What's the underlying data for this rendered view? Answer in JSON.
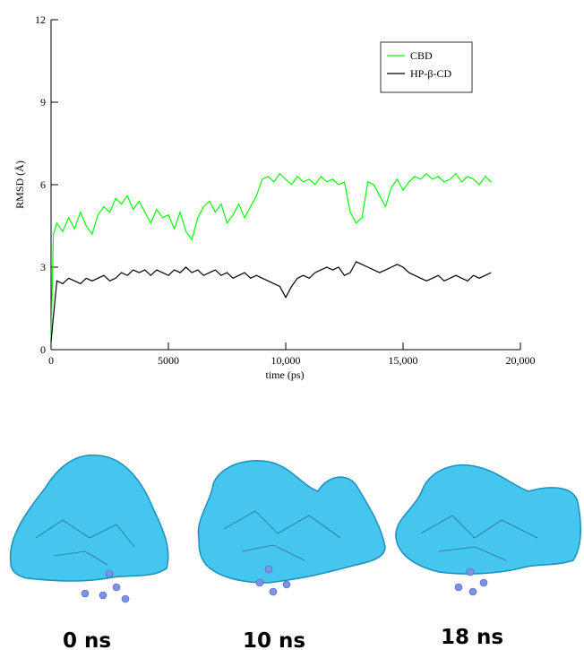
{
  "chart_data": {
    "type": "line",
    "x_label": "time (ps)",
    "y_label": "RMSD (Å)",
    "x": [
      0,
      100,
      250,
      500,
      750,
      1000,
      1250,
      1500,
      1750,
      2000,
      2250,
      2500,
      2750,
      3000,
      3250,
      3500,
      3750,
      4000,
      4250,
      4500,
      4750,
      5000,
      5250,
      5500,
      5750,
      6000,
      6250,
      6500,
      6750,
      7000,
      7250,
      7500,
      7750,
      8000,
      8250,
      8500,
      8750,
      9000,
      9250,
      9500,
      9750,
      10000,
      10250,
      10500,
      10750,
      11000,
      11250,
      11500,
      11750,
      12000,
      12250,
      12500,
      12750,
      13000,
      13250,
      13500,
      13750,
      14000,
      14250,
      14500,
      14750,
      15000,
      15250,
      15500,
      15750,
      16000,
      16250,
      16500,
      16750,
      17000,
      17250,
      17500,
      17750,
      18000,
      18250,
      18500,
      18750
    ],
    "series": [
      {
        "name": "CBD",
        "color": "#00ff00",
        "values": [
          0.3,
          4.2,
          4.6,
          4.3,
          4.8,
          4.4,
          5.0,
          4.5,
          4.2,
          4.9,
          5.2,
          5.0,
          5.5,
          5.3,
          5.6,
          5.1,
          5.4,
          5.0,
          4.6,
          5.1,
          4.8,
          4.9,
          4.4,
          5.0,
          4.3,
          4.0,
          4.8,
          5.2,
          5.4,
          5.0,
          5.3,
          4.6,
          4.9,
          5.3,
          4.8,
          5.2,
          5.6,
          6.2,
          6.3,
          6.1,
          6.4,
          6.2,
          6.0,
          6.3,
          6.1,
          6.2,
          6.0,
          6.3,
          6.1,
          6.2,
          6.0,
          6.1,
          5.0,
          4.6,
          4.8,
          6.1,
          6.0,
          5.6,
          5.2,
          5.9,
          6.2,
          5.8,
          6.1,
          6.3,
          6.2,
          6.4,
          6.2,
          6.3,
          6.1,
          6.2,
          6.4,
          6.1,
          6.3,
          6.2,
          6.0,
          6.3,
          6.1
        ]
      },
      {
        "name": "HP-β-CD",
        "color": "#000000",
        "values": [
          0.3,
          1.2,
          2.5,
          2.4,
          2.6,
          2.5,
          2.4,
          2.6,
          2.5,
          2.6,
          2.7,
          2.5,
          2.6,
          2.8,
          2.7,
          2.9,
          2.8,
          2.9,
          2.7,
          2.9,
          2.8,
          2.7,
          2.9,
          2.8,
          3.0,
          2.8,
          2.9,
          2.7,
          2.8,
          2.9,
          2.7,
          2.8,
          2.6,
          2.7,
          2.8,
          2.6,
          2.7,
          2.6,
          2.5,
          2.4,
          2.3,
          1.9,
          2.3,
          2.6,
          2.7,
          2.6,
          2.8,
          2.9,
          3.0,
          2.9,
          3.0,
          2.7,
          2.8,
          3.2,
          3.1,
          3.0,
          2.9,
          2.8,
          2.9,
          3.0,
          3.1,
          3.0,
          2.8,
          2.7,
          2.6,
          2.5,
          2.6,
          2.7,
          2.5,
          2.6,
          2.7,
          2.6,
          2.5,
          2.7,
          2.6,
          2.7,
          2.8
        ]
      }
    ],
    "xlim": [
      0,
      20000
    ],
    "xticks": [
      0,
      5000,
      {
        "value": 10000,
        "label": "10,000"
      },
      {
        "value": 15000,
        "label": "15,000"
      },
      {
        "value": 20000,
        "label": "20,000"
      }
    ],
    "ylim": [
      0,
      12
    ],
    "yticks": [
      0,
      3,
      6,
      9,
      12
    ],
    "grid": false,
    "legend": "upper right"
  },
  "panels": [
    {
      "label": "0 ns"
    },
    {
      "label": "10 ns"
    },
    {
      "label": "18 ns"
    }
  ]
}
